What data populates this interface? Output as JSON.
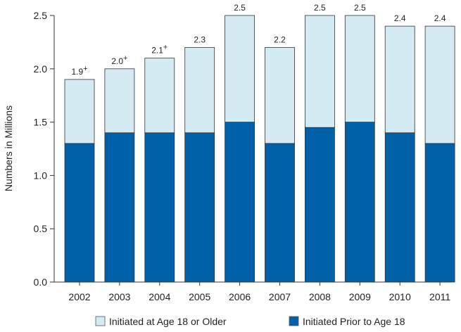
{
  "chart_data": {
    "type": "bar",
    "stacked": true,
    "ylabel": "Numbers in Millions",
    "ylim": [
      0,
      2.5
    ],
    "yticks": [
      "0.0",
      "0.5",
      "1.0",
      "1.5",
      "2.0",
      "2.5"
    ],
    "categories": [
      "2002",
      "2003",
      "2004",
      "2005",
      "2006",
      "2007",
      "2008",
      "2009",
      "2010",
      "2011"
    ],
    "totals": [
      "1.9",
      "2.0",
      "2.1",
      "2.3",
      "2.5",
      "2.2",
      "2.5",
      "2.5",
      "2.4",
      "2.4"
    ],
    "total_markers": [
      "+",
      "+",
      "+",
      "",
      "",
      "",
      "",
      "",
      "",
      ""
    ],
    "series": [
      {
        "name": "Initiated Prior to Age 18",
        "color": "#0060a8",
        "values": [
          1.3,
          1.4,
          1.4,
          1.4,
          1.5,
          1.3,
          1.45,
          1.5,
          1.4,
          1.3
        ]
      },
      {
        "name": "Initiated at Age 18 or Older",
        "color": "#d5ebf4",
        "values": [
          0.6,
          0.6,
          0.7,
          0.8,
          1.0,
          0.9,
          1.05,
          1.0,
          1.0,
          1.1
        ]
      }
    ],
    "legend": [
      {
        "label": "Initiated at Age 18 or Older",
        "color": "#d5ebf4"
      },
      {
        "label": "Initiated Prior to Age 18",
        "color": "#0060a8"
      }
    ],
    "legend_position": "bottom"
  }
}
